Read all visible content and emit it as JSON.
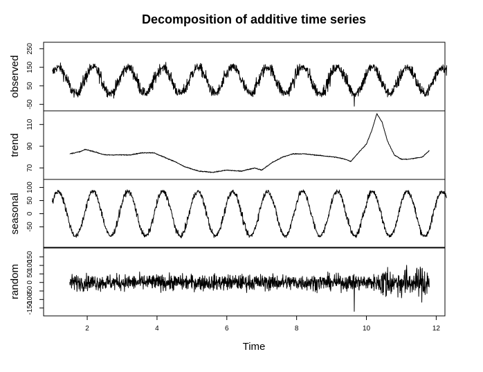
{
  "chart_data": {
    "type": "line",
    "title": "Decomposition of additive time series",
    "xlabel": "Time",
    "xlim": [
      0.75,
      12.25
    ],
    "xticks": [
      2,
      4,
      6,
      8,
      10,
      12
    ],
    "background_color": "#ffffff",
    "line_color": "#000000",
    "panels": [
      {
        "name": "observed",
        "ylabel": "observed",
        "ylim": [
          -70,
          270
        ],
        "yticks": [
          -50,
          50,
          150,
          250
        ],
        "generator": "seasonal_noise",
        "x_range": [
          1.0,
          12.3
        ],
        "params": {
          "base": 80,
          "amp": 70,
          "period": 1.0,
          "phase": 0.17,
          "noise": 40,
          "dip_at": 9.65,
          "dip_value": -60
        }
      },
      {
        "name": "trend",
        "ylabel": "trend",
        "ylim": [
          62,
          120
        ],
        "yticks": [
          70,
          90,
          110
        ],
        "generator": "piecewise",
        "x_range": [
          1.5,
          11.8
        ],
        "knots": {
          "x": [
            1.5,
            1.8,
            1.95,
            2.2,
            2.5,
            2.8,
            3.2,
            3.6,
            3.9,
            4.2,
            4.5,
            4.8,
            5.2,
            5.6,
            6.0,
            6.4,
            6.8,
            7.0,
            7.3,
            7.6,
            7.9,
            8.2,
            8.5,
            8.8,
            9.1,
            9.4,
            9.55,
            9.8,
            10.0,
            10.15,
            10.3,
            10.45,
            10.6,
            10.8,
            11.0,
            11.2,
            11.4,
            11.6,
            11.8
          ],
          "y": [
            83,
            85,
            87,
            85,
            82,
            82,
            82,
            84,
            84,
            80,
            76,
            71,
            67,
            66,
            68,
            67,
            70,
            68,
            75,
            80,
            83,
            83,
            82,
            81,
            80,
            78,
            76,
            85,
            92,
            104,
            120,
            112,
            95,
            82,
            78,
            78,
            79,
            80,
            86
          ]
        }
      },
      {
        "name": "seasonal",
        "ylabel": "seasonal",
        "ylim": [
          -120,
          120
        ],
        "yticks": [
          -50,
          0,
          50,
          100
        ],
        "generator": "seasonal_noise",
        "x_range": [
          1.0,
          12.3
        ],
        "params": {
          "base": 0,
          "amp": 85,
          "period": 1.0,
          "phase": 0.17,
          "noise": 15
        }
      },
      {
        "name": "random",
        "ylabel": "random",
        "ylim": [
          -180,
          190
        ],
        "yticks": [
          -150,
          -100,
          -50,
          0,
          50,
          100,
          150
        ],
        "generator": "noise",
        "x_range": [
          1.5,
          11.8
        ],
        "params": {
          "noise": 45,
          "spike_at": 9.65,
          "spike_value": -170,
          "burst_start": 10.3,
          "burst_end": 11.8,
          "burst_gain": 2.2
        }
      }
    ]
  }
}
